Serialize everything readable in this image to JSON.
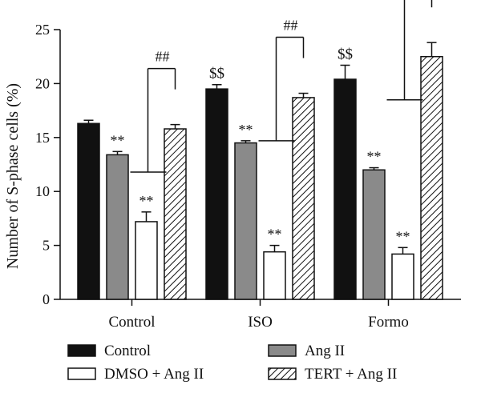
{
  "chart_data": {
    "type": "bar",
    "ylabel": "Number of S-phase cells (%)",
    "ylim": [
      0,
      25
    ],
    "yticks": [
      0,
      5,
      10,
      15,
      20,
      25
    ],
    "categories": [
      "Control",
      "ISO",
      "Formo"
    ],
    "series": [
      {
        "name": "Control",
        "fill": "black",
        "values": [
          16.3,
          19.5,
          20.4
        ],
        "errors": [
          0.3,
          0.4,
          1.3
        ],
        "annotations": [
          "",
          "$$",
          "$$"
        ]
      },
      {
        "name": "Ang II",
        "fill": "gray",
        "values": [
          13.4,
          14.5,
          12.0
        ],
        "errors": [
          0.3,
          0.2,
          0.2
        ],
        "annotations": [
          "**",
          "**",
          "**"
        ]
      },
      {
        "name": "DMSO + Ang II",
        "fill": "white",
        "values": [
          7.2,
          4.4,
          4.2
        ],
        "errors": [
          0.9,
          0.6,
          0.6
        ],
        "annotations": [
          "**",
          "**",
          "**"
        ]
      },
      {
        "name": "TERT + Ang II",
        "fill": "hatch",
        "values": [
          15.8,
          18.7,
          22.5
        ],
        "errors": [
          0.4,
          0.4,
          1.3
        ],
        "annotations": [
          "",
          "",
          ""
        ]
      }
    ],
    "brackets": [
      {
        "category": 0,
        "from_series": 2,
        "to_series": 3,
        "label": "##"
      },
      {
        "category": 1,
        "from_series": 2,
        "to_series": 3,
        "label": "##"
      },
      {
        "category": 2,
        "from_series": 2,
        "to_series": 3,
        "label": "##"
      }
    ],
    "legend": {
      "placement": "bottom"
    },
    "colors": {
      "black": "#111111",
      "gray": "#8a8a8a",
      "white": "#ffffff",
      "stroke": "#111111"
    }
  }
}
